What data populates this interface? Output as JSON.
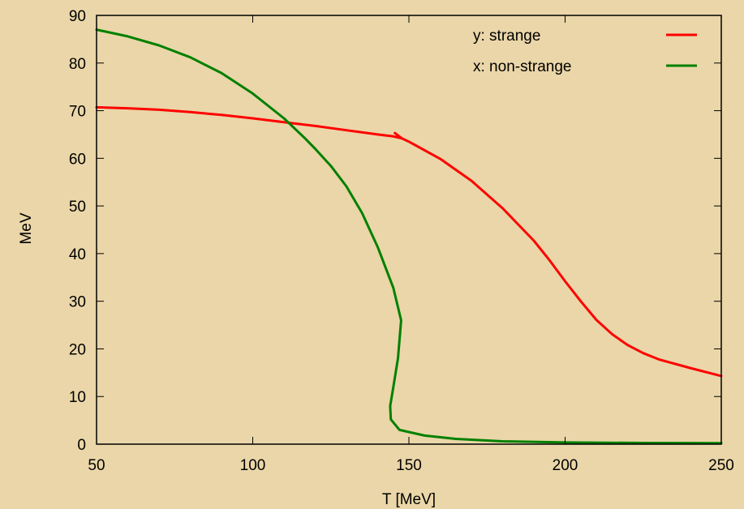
{
  "chart_data": {
    "type": "line",
    "title": "",
    "xlabel": "T [MeV]",
    "ylabel": "MeV",
    "xlim": [
      50,
      250
    ],
    "ylim": [
      0,
      90
    ],
    "xticks": [
      50,
      100,
      150,
      200,
      250
    ],
    "yticks": [
      0,
      10,
      20,
      30,
      40,
      50,
      60,
      70,
      80,
      90
    ],
    "grid": false,
    "legend_position": "top-right",
    "series": [
      {
        "name": "y: strange",
        "color": "#ff0000",
        "points": [
          [
            50,
            70.7
          ],
          [
            60,
            70.5
          ],
          [
            70,
            70.2
          ],
          [
            80,
            69.7
          ],
          [
            90,
            69.1
          ],
          [
            100,
            68.4
          ],
          [
            110,
            67.6
          ],
          [
            120,
            66.8
          ],
          [
            130,
            65.9
          ],
          [
            140,
            65.0
          ],
          [
            145,
            64.6
          ],
          [
            147.7,
            64.2
          ],
          [
            145.5,
            65.3
          ],
          [
            147.7,
            64.2
          ],
          [
            150,
            63.5
          ],
          [
            160,
            59.9
          ],
          [
            170,
            55.3
          ],
          [
            180,
            49.5
          ],
          [
            190,
            42.7
          ],
          [
            195,
            38.6
          ],
          [
            200,
            34.2
          ],
          [
            205,
            30.0
          ],
          [
            210,
            26.1
          ],
          [
            215,
            23.1
          ],
          [
            220,
            20.8
          ],
          [
            225,
            19.1
          ],
          [
            230,
            17.8
          ],
          [
            240,
            16.0
          ],
          [
            250,
            14.3
          ]
        ]
      },
      {
        "name": "x: non-strange",
        "color": "#008000",
        "points": [
          [
            50,
            87.0
          ],
          [
            60,
            85.6
          ],
          [
            70,
            83.7
          ],
          [
            80,
            81.2
          ],
          [
            90,
            77.9
          ],
          [
            100,
            73.6
          ],
          [
            110,
            68.4
          ],
          [
            116.7,
            64.2
          ],
          [
            120,
            62.0
          ],
          [
            125,
            58.4
          ],
          [
            130,
            54.1
          ],
          [
            135,
            48.5
          ],
          [
            140,
            41.4
          ],
          [
            145,
            32.8
          ],
          [
            147.5,
            26.0
          ],
          [
            146.5,
            18.0
          ],
          [
            145.0,
            12.0
          ],
          [
            144.0,
            8.0
          ],
          [
            144.2,
            5.2
          ],
          [
            147,
            3.0
          ],
          [
            155,
            1.8
          ],
          [
            165,
            1.1
          ],
          [
            180,
            0.6
          ],
          [
            200,
            0.35
          ],
          [
            225,
            0.25
          ],
          [
            250,
            0.2
          ]
        ]
      }
    ]
  }
}
